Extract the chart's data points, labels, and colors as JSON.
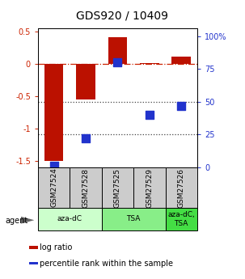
{
  "title": "GDS920 / 10409",
  "samples": [
    "GSM27524",
    "GSM27528",
    "GSM27525",
    "GSM27529",
    "GSM27526"
  ],
  "log_ratio": [
    -1.5,
    -0.55,
    0.42,
    0.02,
    0.12
  ],
  "percentile_rank": [
    1.0,
    22.0,
    80.0,
    40.0,
    47.0
  ],
  "ylim_left": [
    -1.6,
    0.56
  ],
  "ylim_right": [
    0,
    106.25
  ],
  "right_ticks": [
    0,
    25,
    50,
    75,
    100
  ],
  "right_tick_labels": [
    "0",
    "25",
    "50",
    "75",
    "100%"
  ],
  "left_ticks": [
    -1.5,
    -1.0,
    -0.5,
    0.0,
    0.5
  ],
  "left_tick_labels": [
    "-1.5",
    "-1",
    "-0.5",
    "0",
    "0.5"
  ],
  "groups": [
    {
      "label": "aza-dC",
      "span": [
        0,
        2
      ],
      "color": "#ccffcc"
    },
    {
      "label": "TSA",
      "span": [
        2,
        4
      ],
      "color": "#88ee88"
    },
    {
      "label": "aza-dC,\nTSA",
      "span": [
        4,
        5
      ],
      "color": "#44dd44"
    }
  ],
  "bar_color": "#bb1100",
  "dot_color": "#2233cc",
  "bar_width": 0.6,
  "dot_size": 55,
  "zero_line_color": "#cc2200",
  "dotted_line_color": "#444444",
  "sample_box_color": "#cccccc",
  "title_fontsize": 10,
  "tick_fontsize": 7,
  "label_fontsize": 7,
  "legend_fontsize": 7,
  "agent_label": "agent",
  "legend_items": [
    {
      "color": "#bb1100",
      "label": "log ratio"
    },
    {
      "color": "#2233cc",
      "label": "percentile rank within the sample"
    }
  ]
}
